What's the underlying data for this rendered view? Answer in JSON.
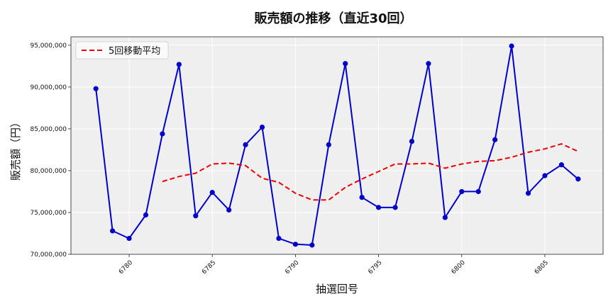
{
  "chart_data": {
    "type": "line",
    "title": "販売額の推移（直近30回）",
    "xlabel": "抽選回号",
    "ylabel": "販売額（円）",
    "x": [
      6778,
      6779,
      6780,
      6781,
      6782,
      6783,
      6784,
      6785,
      6786,
      6787,
      6788,
      6789,
      6790,
      6791,
      6792,
      6793,
      6794,
      6795,
      6796,
      6797,
      6798,
      6799,
      6800,
      6801,
      6802,
      6803,
      6804,
      6805,
      6806,
      6807
    ],
    "xlim": [
      6776.5,
      6808.5
    ],
    "ylim": [
      70000000,
      96000000
    ],
    "xticks": [
      6780,
      6785,
      6790,
      6795,
      6800,
      6805
    ],
    "yticks": [
      70000000,
      75000000,
      80000000,
      85000000,
      90000000,
      95000000
    ],
    "grid": true,
    "legend_position": "top-left",
    "series": [
      {
        "name": "",
        "color": "#0000cc",
        "style": "solid",
        "marker": "circle",
        "values": [
          89800000,
          72800000,
          71900000,
          74700000,
          84400000,
          92700000,
          74600000,
          77400000,
          75300000,
          83100000,
          85200000,
          71900000,
          71200000,
          71100000,
          83100000,
          92800000,
          76800000,
          75600000,
          75600000,
          83500000,
          92800000,
          74400000,
          77500000,
          77500000,
          83700000,
          94900000,
          77300000,
          79400000,
          80700000,
          79000000
        ]
      },
      {
        "name": "5回移動平均",
        "color": "#ee0000",
        "style": "dashed",
        "marker": "none",
        "values": [
          null,
          null,
          null,
          null,
          78700000,
          79300000,
          79700000,
          80800000,
          80900000,
          80600000,
          79100000,
          78600000,
          77300000,
          76500000,
          76500000,
          78000000,
          79000000,
          79900000,
          80800000,
          80800000,
          80900000,
          80300000,
          80800000,
          81100000,
          81200000,
          81600000,
          82200000,
          82600000,
          83200000,
          82300000
        ]
      }
    ]
  }
}
